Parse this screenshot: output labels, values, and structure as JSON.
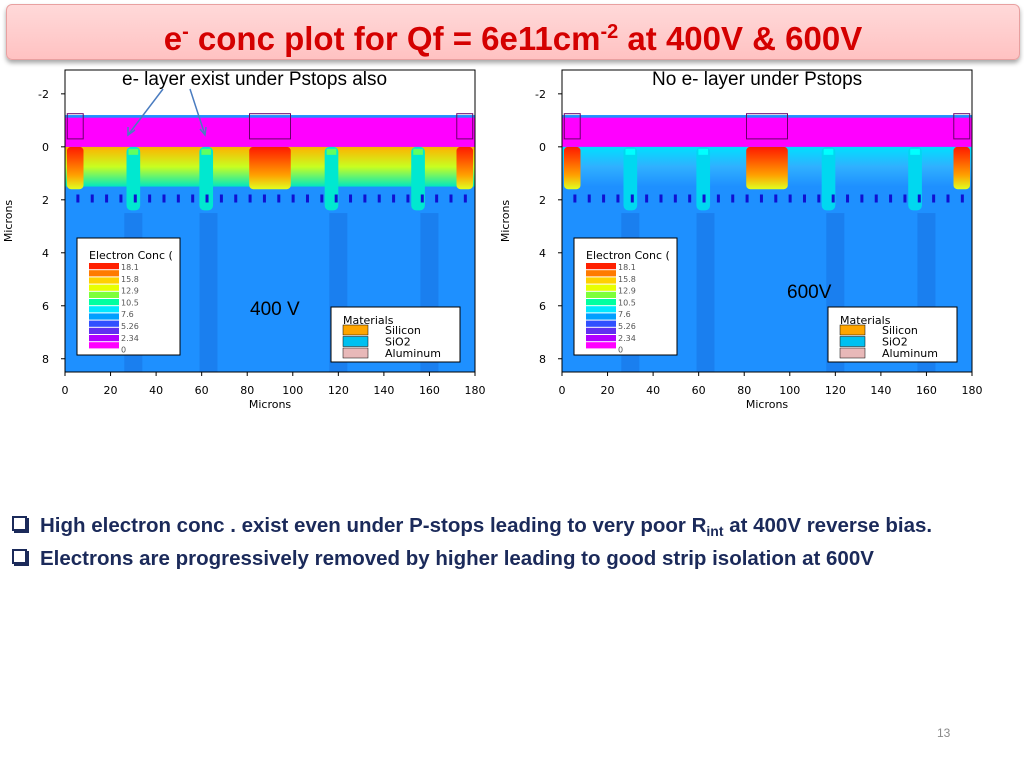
{
  "slide": {
    "title_main": "e",
    "title_sup1": "-",
    "title_mid": " conc plot for Qf = 6e11cm",
    "title_sup2": "-2",
    "title_end": " at 400V & 600V",
    "page_number": "13"
  },
  "plots": {
    "left_annotation": "e- layer exist under Pstops also",
    "left_voltage": "400 V",
    "right_annotation": "No e- layer under Pstops",
    "right_voltage": "600V",
    "x_axis_label": "Microns",
    "y_axis_label": "Microns",
    "x_ticks": [
      "0",
      "20",
      "40",
      "60",
      "80",
      "100",
      "120",
      "140",
      "160",
      "180"
    ],
    "y_ticks": [
      "-2",
      "0",
      "2",
      "4",
      "6",
      "8"
    ],
    "legend_title": "Electron Conc (",
    "legend_values": [
      "18.1",
      "15.8",
      "12.9",
      "10.5",
      "7.6",
      "5.26",
      "2.34",
      "0"
    ],
    "materials_title": "Materials",
    "materials": [
      {
        "name": "Silicon",
        "color": "#ffa500"
      },
      {
        "name": "SiO2",
        "color": "#00c0f0"
      },
      {
        "name": "Aluminum",
        "color": "#e8b8b8"
      }
    ]
  },
  "bullets": {
    "b1_text": "High electron conc . exist even under P-stops leading to very poor R",
    "b1_sub": "int",
    "b1_end": "  at 400V reverse bias.",
    "b2_text": "Electrons are progressively removed by higher leading to good strip isolation at 600V"
  },
  "colors": {
    "title_red": "#d40000",
    "title_bg": "#ffc8c8",
    "bullet_navy": "#1b2a5a",
    "substrate_blue": "#1e90ff",
    "magenta_layer": "#ff00ff"
  }
}
